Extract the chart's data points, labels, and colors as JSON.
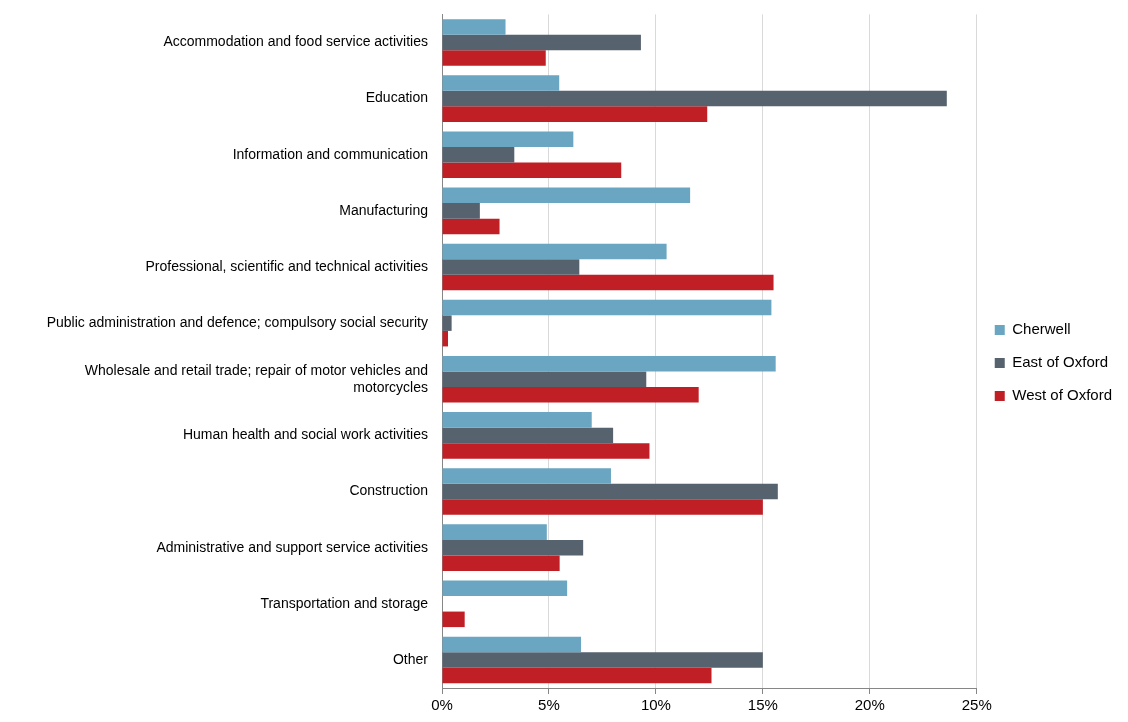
{
  "chart_data": {
    "type": "bar",
    "orientation": "horizontal",
    "categories": [
      "Accommodation and food service activities",
      "Education",
      "Information and communication",
      "Manufacturing",
      "Professional, scientific and technical activities",
      "Public administration and defence; compulsory social security",
      "Wholesale and retail trade; repair of motor vehicles and motorcycles",
      "Human health and social work activities",
      "Construction",
      "Administrative and support service activities",
      "Transportation and storage",
      "Other"
    ],
    "series": [
      {
        "name": "Cherwell",
        "color": "#6aa5c1",
        "values": [
          2.97,
          5.48,
          6.14,
          11.6,
          10.5,
          15.4,
          15.6,
          7.0,
          7.9,
          4.9,
          5.85,
          6.5
        ]
      },
      {
        "name": "East of Oxford",
        "color": "#56626e",
        "values": [
          9.3,
          23.6,
          3.38,
          1.77,
          6.42,
          0.45,
          9.55,
          8.0,
          15.7,
          6.6,
          null,
          15.0
        ]
      },
      {
        "name": "West of Oxford",
        "color": "#c01f26",
        "values": [
          4.85,
          12.4,
          8.38,
          2.69,
          15.5,
          0.28,
          12.0,
          9.7,
          15.0,
          5.5,
          1.06,
          12.6
        ]
      }
    ],
    "xlim": [
      0,
      25
    ],
    "xticks": [
      {
        "value": 0,
        "label": "0%"
      },
      {
        "value": 5,
        "label": "5%"
      },
      {
        "value": 10,
        "label": "10%"
      },
      {
        "value": 15,
        "label": "15%"
      },
      {
        "value": 20,
        "label": "20%"
      },
      {
        "value": 25,
        "label": "25%"
      }
    ],
    "grid": "x",
    "legend": "right"
  }
}
